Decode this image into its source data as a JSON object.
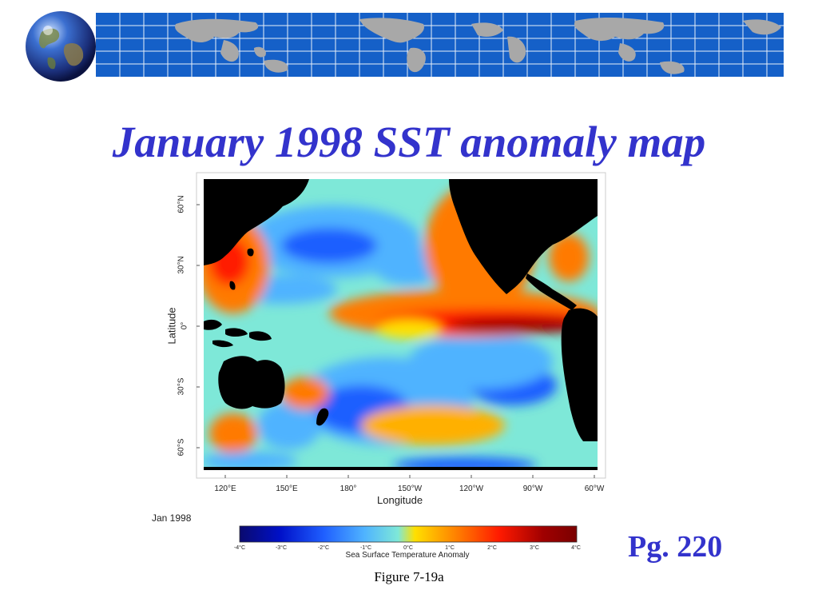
{
  "slide": {
    "title": "January 1998 SST anomaly map",
    "page_ref": "Pg. 220",
    "caption": "Figure 7-19a"
  },
  "map": {
    "date_label": "Jan 1998",
    "y_axis_title": "Latitude",
    "x_axis_title": "Longitude",
    "lat_ticks": [
      "60°N",
      "30°N",
      "0°",
      "30°S",
      "60°S"
    ],
    "lon_ticks": [
      "120°E",
      "150°E",
      "180°",
      "150°W",
      "120°W",
      "90°W",
      "60°W"
    ],
    "colorbar": {
      "title": "Sea Surface Temperature Anomaly",
      "ticks": [
        "-4°C",
        "-3°C",
        "-2°C",
        "-1°C",
        "0°C",
        "1°C",
        "2°C",
        "3°C",
        "4°C"
      ],
      "colors": [
        "#0a0a6e",
        "#0010c8",
        "#1f5fff",
        "#4fb3ff",
        "#7ee8d8",
        "#ffe000",
        "#ff7a00",
        "#ff1a00",
        "#a00000",
        "#7a0000"
      ]
    }
  },
  "colors": {
    "title": "#3333cc",
    "banner_blue": "#1560c8",
    "land": "#000000"
  },
  "icons": [
    "globe-icon",
    "world-map-banner"
  ]
}
